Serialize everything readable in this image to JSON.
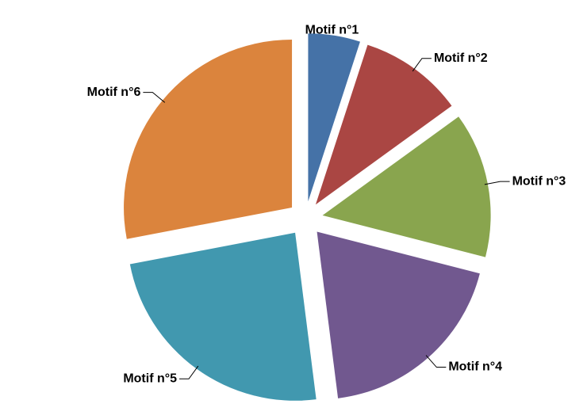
{
  "chart_data": {
    "type": "pie",
    "categories": [
      "Motif n°1",
      "Motif n°2",
      "Motif n°3",
      "Motif n°4",
      "Motif n°5",
      "Motif n°6"
    ],
    "values": [
      5,
      10,
      14,
      19,
      24,
      28
    ],
    "colors": [
      "#4572a7",
      "#aa4643",
      "#89a54e",
      "#71588f",
      "#4198af",
      "#db843d"
    ],
    "exploded": true
  }
}
